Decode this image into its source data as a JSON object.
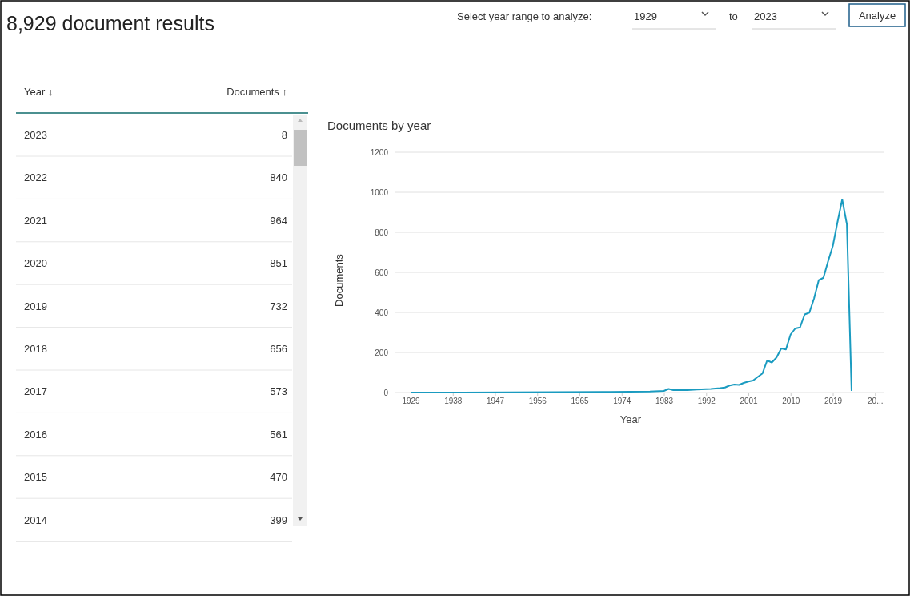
{
  "chart_data": {
    "type": "line",
    "title": "8,929 document results",
    "subtitle": "Documents by year",
    "xlabel": "Year",
    "ylabel": "Documents",
    "annotations": [
      "Select year range to analyze:",
      "1929",
      "to",
      "2023",
      "Analyze",
      "Year ↓",
      "Documents ↑",
      "2023",
      "8",
      "2022",
      "840",
      "2021",
      "964",
      "2020",
      "851",
      "2019",
      "732",
      "2018",
      "656",
      "2017",
      "573",
      "2016",
      "561",
      "2015",
      "470",
      "2014",
      "399"
    ],
    "x": [
      1929,
      1940,
      1950,
      1960,
      1970,
      1980,
      1983,
      1984,
      1985,
      1988,
      1990,
      1993,
      1995,
      1996,
      1997,
      1998,
      1999,
      2000,
      2001,
      2002,
      2003,
      2004,
      2005,
      2006,
      2007,
      2008,
      2009,
      2010,
      2011,
      2012,
      2013,
      2014,
      2015,
      2016,
      2017,
      2018,
      2019,
      2020,
      2021,
      2022,
      2023
    ],
    "series": [
      {
        "color": "#1a9bc0",
        "values": [
          0,
          0,
          1,
          2,
          3,
          5,
          8,
          18,
          12,
          12,
          15,
          18,
          22,
          25,
          35,
          40,
          38,
          48,
          55,
          60,
          78,
          95,
          160,
          150,
          175,
          220,
          215,
          290,
          320,
          325,
          390,
          399,
          470,
          561,
          573,
          656,
          732,
          851,
          964,
          840,
          8
        ]
      }
    ],
    "xlim": [
      1929,
      2030
    ],
    "xticks": [
      1929,
      1938,
      1947,
      1956,
      1965,
      1974,
      1983,
      1992,
      2001,
      2010,
      2019,
      {
        "value": 2028,
        "label": "20..."
      }
    ],
    "ylim": [
      0,
      1200
    ],
    "yticks": [
      0,
      200,
      400,
      600,
      800,
      1000,
      1200
    ],
    "grid": "y"
  }
}
